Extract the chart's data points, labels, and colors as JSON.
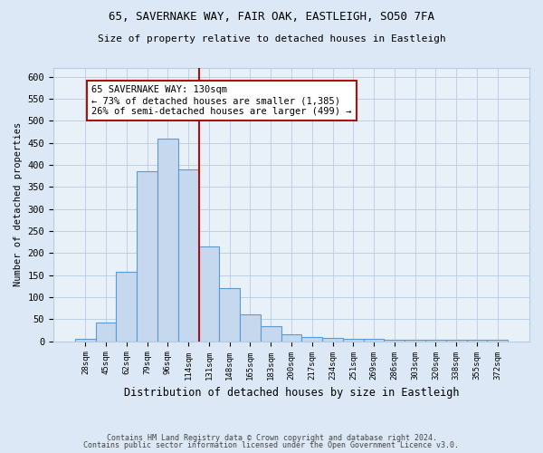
{
  "title1": "65, SAVERNAKE WAY, FAIR OAK, EASTLEIGH, SO50 7FA",
  "title2": "Size of property relative to detached houses in Eastleigh",
  "xlabel": "Distribution of detached houses by size in Eastleigh",
  "ylabel": "Number of detached properties",
  "categories": [
    "28sqm",
    "45sqm",
    "62sqm",
    "79sqm",
    "96sqm",
    "114sqm",
    "131sqm",
    "148sqm",
    "165sqm",
    "183sqm",
    "200sqm",
    "217sqm",
    "234sqm",
    "251sqm",
    "269sqm",
    "286sqm",
    "303sqm",
    "320sqm",
    "338sqm",
    "355sqm",
    "372sqm"
  ],
  "values": [
    5,
    43,
    158,
    385,
    460,
    390,
    215,
    120,
    62,
    35,
    15,
    10,
    8,
    5,
    5,
    4,
    4,
    4,
    4,
    3,
    3
  ],
  "bar_color": "#c5d8ee",
  "bar_edge_color": "#5b9bd5",
  "vline_x": 5.5,
  "vline_color": "#aa1111",
  "annotation_text": "65 SAVERNAKE WAY: 130sqm\n← 73% of detached houses are smaller (1,385)\n26% of semi-detached houses are larger (499) →",
  "annotation_box_color": "#ffffff",
  "annotation_box_edge": "#aa1111",
  "footer1": "Contains HM Land Registry data © Crown copyright and database right 2024.",
  "footer2": "Contains public sector information licensed under the Open Government Licence v3.0.",
  "ylim": [
    0,
    620
  ],
  "yticks": [
    0,
    50,
    100,
    150,
    200,
    250,
    300,
    350,
    400,
    450,
    500,
    550,
    600
  ],
  "bg_color": "#dce8f5",
  "plot_bg_color": "#e8f0f8",
  "grid_color": "#b8cce4"
}
